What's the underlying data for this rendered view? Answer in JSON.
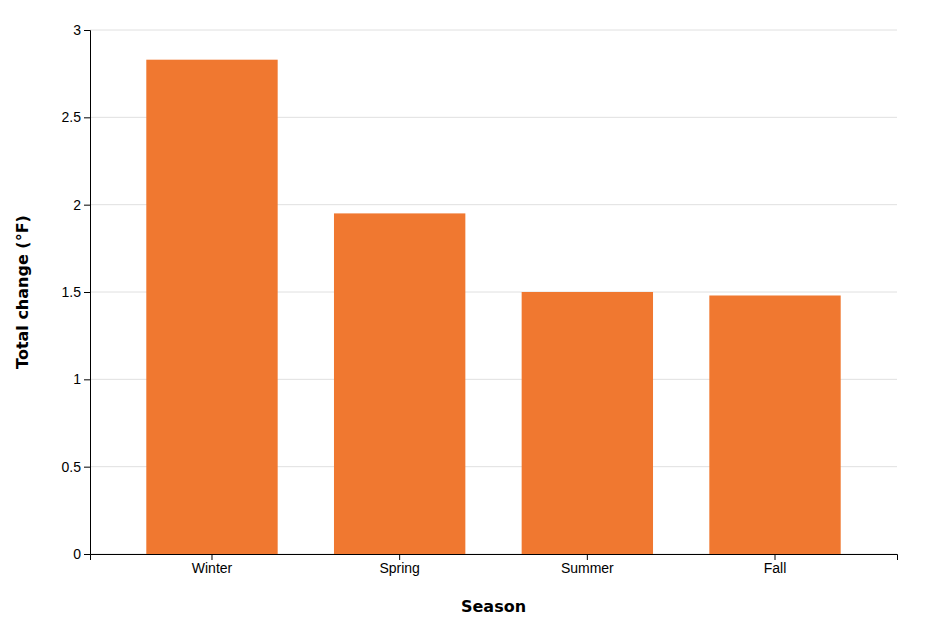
{
  "chart_data": {
    "type": "bar",
    "xlabel": "Season",
    "ylabel": "Total change (°F)",
    "categories": [
      "Winter",
      "Spring",
      "Summer",
      "Fall"
    ],
    "values": [
      2.83,
      1.95,
      1.5,
      1.48
    ],
    "color": "#F07830",
    "ylim": [
      0,
      3.0
    ],
    "yticks": [
      0,
      0.5,
      1.0,
      1.5,
      2.0,
      2.5,
      3.0
    ],
    "grid": true
  }
}
